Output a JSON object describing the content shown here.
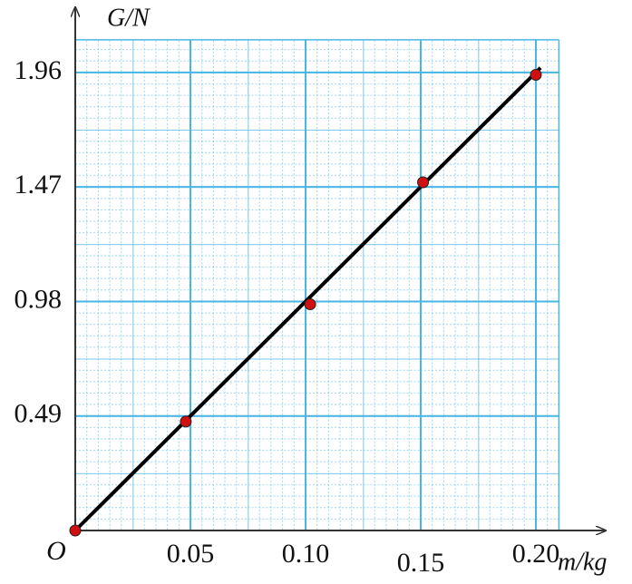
{
  "chart_data": {
    "type": "scatter",
    "x_label": "m/kg",
    "y_label": "G/N",
    "origin_label": "O",
    "series": [
      {
        "name": "G",
        "color": "#d01010",
        "x": [
          0,
          0.048,
          0.102,
          0.151,
          0.2
        ],
        "values": [
          0,
          0.466,
          0.968,
          1.49,
          1.95
        ]
      }
    ],
    "fit_line": {
      "color": "#000000",
      "x": [
        0,
        0.202
      ],
      "values": [
        0,
        1.98
      ]
    },
    "xlim": [
      0,
      0.21
    ],
    "ylim": [
      0,
      2.1
    ],
    "xticks": [
      {
        "value": 0.05,
        "label": "0.05"
      },
      {
        "value": 0.1,
        "label": "0.10"
      },
      {
        "value": 0.15,
        "label": "0.15"
      },
      {
        "value": 0.2,
        "label": "0.20"
      }
    ],
    "yticks": [
      0.49,
      0.98,
      1.47,
      1.96
    ],
    "grid": true,
    "grid_color": "#49b6e6"
  }
}
